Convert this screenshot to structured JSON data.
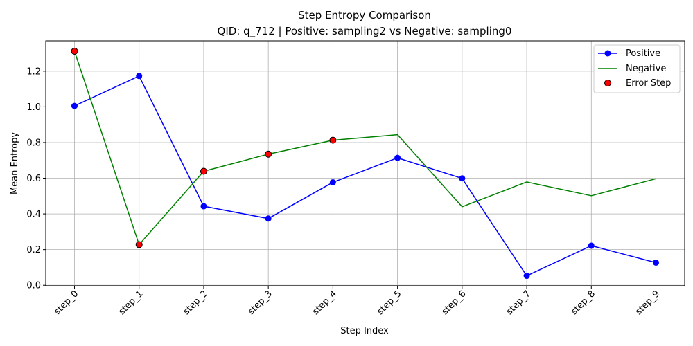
{
  "chart_data": {
    "type": "line",
    "title": "Step Entropy Comparison",
    "subtitle": "QID: q_712 | Positive: sampling2 vs Negative: sampling0",
    "xlabel": "Step Index",
    "ylabel": "Mean Entropy",
    "categories": [
      "step_0",
      "step_1",
      "step_2",
      "step_3",
      "step_4",
      "step_5",
      "step_6",
      "step_7",
      "step_8",
      "step_9"
    ],
    "ylim": [
      -0.003,
      1.37
    ],
    "yticks": [
      0.0,
      0.2,
      0.4,
      0.6,
      0.8,
      1.0,
      1.2
    ],
    "grid": true,
    "legend_position": "top-right",
    "series": [
      {
        "name": "Positive",
        "color": "#0000ff",
        "marker": "circle",
        "values": [
          1.005,
          1.173,
          0.443,
          0.374,
          0.577,
          0.714,
          0.599,
          0.053,
          0.222,
          0.127
        ]
      },
      {
        "name": "Negative",
        "color": "#008000",
        "marker": "none",
        "values": [
          1.312,
          0.228,
          0.639,
          0.735,
          0.813,
          0.844,
          0.44,
          0.579,
          0.502,
          0.597
        ]
      }
    ],
    "error_steps": {
      "name": "Error Step",
      "color": "#ff0000",
      "edge_color": "#000000",
      "indices": [
        0,
        1,
        2,
        3,
        4
      ]
    }
  }
}
